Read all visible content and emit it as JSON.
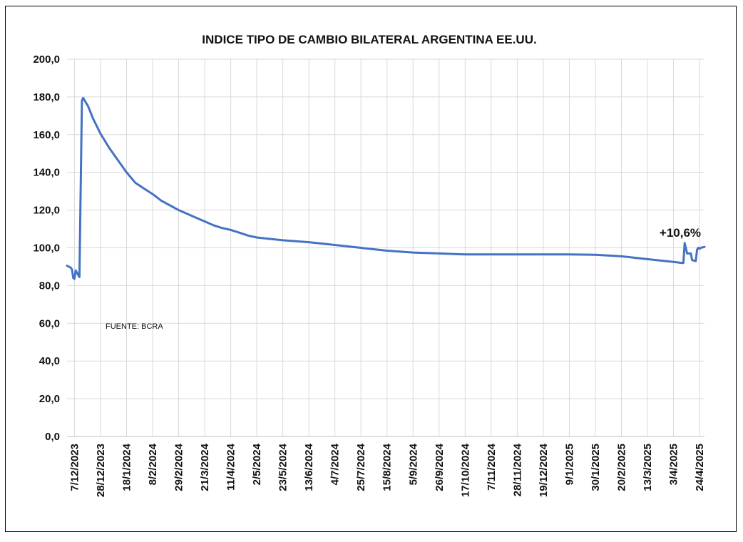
{
  "chart_data": {
    "type": "line",
    "title": "INDICE TIPO DE CAMBIO BILATERAL ARGENTINA  EE.UU.",
    "source_note": "FUENTE: BCRA",
    "annotation": "+10,6%",
    "xlabel": "",
    "ylabel": "",
    "ylim": [
      0,
      200
    ],
    "y_ticks": [
      "0,0",
      "20,0",
      "40,0",
      "60,0",
      "80,0",
      "100,0",
      "120,0",
      "140,0",
      "160,0",
      "180,0",
      "200,0"
    ],
    "y_tick_values": [
      0,
      20,
      40,
      60,
      80,
      100,
      120,
      140,
      160,
      180,
      200
    ],
    "grid": true,
    "color": "#4472C4",
    "x_tick_labels": [
      "7/12/2023",
      "28/12/2023",
      "18/1/2024",
      "8/2/2024",
      "29/2/2024",
      "21/3/2024",
      "11/4/2024",
      "2/5/2024",
      "23/5/2024",
      "13/6/2024",
      "4/7/2024",
      "25/7/2024",
      "15/8/2024",
      "5/9/2024",
      "26/9/2024",
      "17/10/2024",
      "7/11/2024",
      "28/11/2024",
      "19/12/2024",
      "9/1/2025",
      "30/1/2025",
      "20/2/2025",
      "13/3/2025",
      "3/4/2025",
      "24/4/2025"
    ],
    "series": [
      {
        "name": "",
        "x": [
          "1/12/2023",
          "4/12/2023",
          "5/12/2023",
          "6/12/2023",
          "7/12/2023",
          "8/12/2023",
          "11/12/2023",
          "13/12/2023",
          "14/12/2023",
          "18/12/2023",
          "22/12/2023",
          "28/12/2023",
          "4/1/2024",
          "11/1/2024",
          "18/1/2024",
          "25/1/2024",
          "1/2/2024",
          "8/2/2024",
          "15/2/2024",
          "22/2/2024",
          "29/2/2024",
          "7/3/2024",
          "14/3/2024",
          "21/3/2024",
          "28/3/2024",
          "4/4/2024",
          "11/4/2024",
          "18/4/2024",
          "25/4/2024",
          "2/5/2024",
          "23/5/2024",
          "13/6/2024",
          "4/7/2024",
          "25/7/2024",
          "15/8/2024",
          "5/9/2024",
          "26/9/2024",
          "17/10/2024",
          "7/11/2024",
          "28/11/2024",
          "19/12/2024",
          "9/1/2025",
          "30/1/2025",
          "20/2/2025",
          "13/3/2025",
          "3/4/2025",
          "10/4/2025",
          "11/4/2025",
          "12/4/2025",
          "14/4/2025",
          "17/4/2025",
          "18/4/2025",
          "21/4/2025",
          "22/4/2025",
          "23/4/2025",
          "24/4/2025",
          "25/4/2025",
          "28/4/2025"
        ],
        "values": [
          90.5,
          89.5,
          88.5,
          84.0,
          83.5,
          88.0,
          84.5,
          178.0,
          179.5,
          175.0,
          168.5,
          160.5,
          153.0,
          146.5,
          140.0,
          134.5,
          131.5,
          128.5,
          125.0,
          122.5,
          120.0,
          118.0,
          116.0,
          114.0,
          112.0,
          110.5,
          109.5,
          108.0,
          106.5,
          105.5,
          104.0,
          103.0,
          101.5,
          100.0,
          98.5,
          97.5,
          97.0,
          96.5,
          96.5,
          96.5,
          96.5,
          96.5,
          96.3,
          95.5,
          94.0,
          92.5,
          92.0,
          92.0,
          102.5,
          97.0,
          97.0,
          93.5,
          93.0,
          99.0,
          100.0,
          99.5,
          100.0,
          100.5
        ]
      }
    ]
  }
}
